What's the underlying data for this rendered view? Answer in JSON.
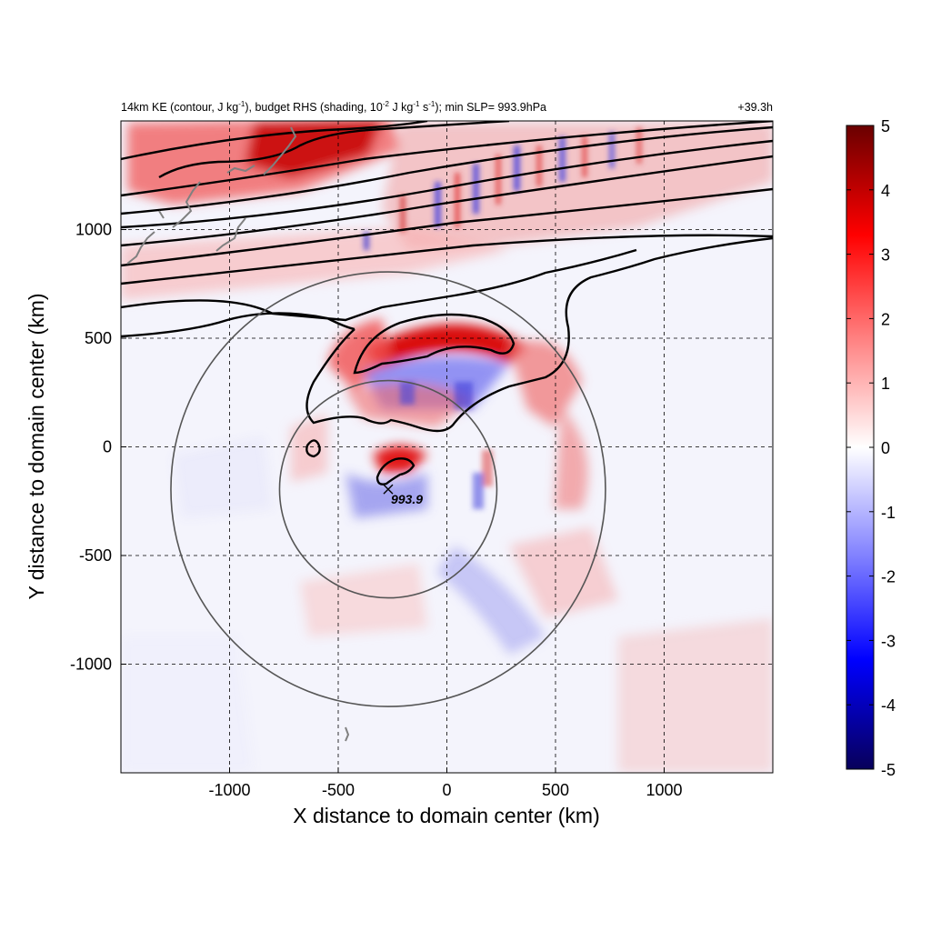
{
  "chart_data": {
    "type": "heatmap",
    "title_left": "14km KE (contour, J kg",
    "title_left_exp1": "-1",
    "title_left_mid": "), budget RHS (shading, 10",
    "title_left_exp2": "-2",
    "title_left_unit1": " J kg",
    "title_left_exp3": "-1",
    "title_left_unit2": " s",
    "title_left_exp4": "-1",
    "title_left_end": "); min SLP= 993.9hPa",
    "title_right": "+39.3h",
    "xlabel": "X distance to domain center (km)",
    "ylabel": "Y distance to domain center (km)",
    "xlim": [
      -1500,
      1500
    ],
    "ylim": [
      -1500,
      1500
    ],
    "x_ticks": [
      -1000,
      -500,
      0,
      500,
      1000
    ],
    "y_ticks": [
      -1000,
      -500,
      0,
      500,
      1000
    ],
    "grid": "dashed",
    "colorbar": {
      "ticks": [
        5,
        4,
        3,
        2,
        1,
        0,
        -1,
        -2,
        -3,
        -4,
        -5
      ],
      "range": [
        -5,
        5
      ],
      "colormap": "blue-white-red",
      "colors": [
        "#08005a",
        "#0000ff",
        "#8080ff",
        "#ffffff",
        "#ff8080",
        "#ff0000",
        "#6a0000"
      ]
    },
    "center_marker": {
      "x": -270,
      "y": -195,
      "label": "993.9"
    },
    "rings": [
      {
        "cx": -270,
        "cy": -195,
        "radius_km": 500
      },
      {
        "cx": -270,
        "cy": -195,
        "radius_km": 1000
      }
    ]
  }
}
